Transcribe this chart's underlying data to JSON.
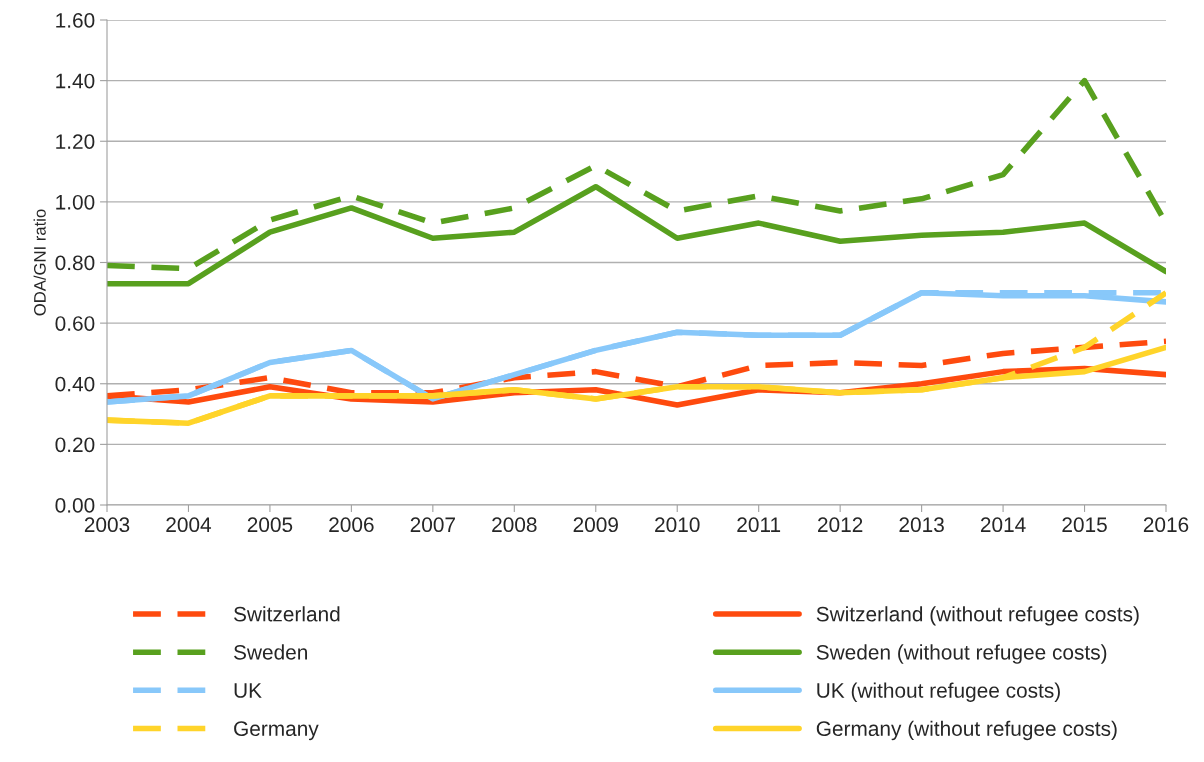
{
  "chart_data": {
    "type": "line",
    "ylabel": "ODA/GNI ratio",
    "x": [
      2003,
      2004,
      2005,
      2006,
      2007,
      2008,
      2009,
      2010,
      2011,
      2012,
      2013,
      2014,
      2015,
      2016
    ],
    "xlim": [
      2003,
      2016
    ],
    "xticks": [
      2003,
      2004,
      2005,
      2006,
      2007,
      2008,
      2009,
      2010,
      2011,
      2012,
      2013,
      2014,
      2015,
      2016
    ],
    "ylim": [
      0,
      1.6
    ],
    "yticks": [
      {
        "value": 0,
        "label": "0.00"
      },
      {
        "value": 0.2,
        "label": "0.20"
      },
      {
        "value": 0.4,
        "label": "0.40"
      },
      {
        "value": 0.6,
        "label": "0.60"
      },
      {
        "value": 0.8,
        "label": "0.80"
      },
      {
        "value": 1.0,
        "label": "1.00"
      },
      {
        "value": 1.2,
        "label": "1.20"
      },
      {
        "value": 1.4,
        "label": "1.40"
      },
      {
        "value": 1.6,
        "label": "1.60"
      }
    ],
    "grid": "y",
    "legend": "bottom",
    "marker": "none",
    "series": [
      {
        "name": "Switzerland",
        "color": "#fe4a0e",
        "line_style": "dashed",
        "values": [
          0.36,
          0.38,
          0.42,
          0.37,
          0.37,
          0.42,
          0.44,
          0.39,
          0.46,
          0.47,
          0.46,
          0.5,
          0.52,
          0.54
        ]
      },
      {
        "name": "Switzerland (without refugee costs)",
        "color": "#fe4a0e",
        "line_style": "solid",
        "values": [
          0.36,
          0.34,
          0.39,
          0.35,
          0.34,
          0.37,
          0.38,
          0.33,
          0.38,
          0.37,
          0.4,
          0.44,
          0.45,
          0.43
        ]
      },
      {
        "name": "Sweden",
        "color": "#58a01e",
        "line_style": "dashed",
        "values": [
          0.79,
          0.78,
          0.94,
          1.02,
          0.93,
          0.98,
          1.12,
          0.97,
          1.02,
          0.97,
          1.01,
          1.09,
          1.4,
          0.93
        ]
      },
      {
        "name": "Sweden (without refugee costs)",
        "color": "#58a01e",
        "line_style": "solid",
        "values": [
          0.73,
          0.73,
          0.9,
          0.98,
          0.88,
          0.9,
          1.05,
          0.88,
          0.93,
          0.87,
          0.89,
          0.9,
          0.93,
          0.77
        ]
      },
      {
        "name": "UK",
        "color": "#88c8fa",
        "line_style": "dashed",
        "values": [
          0.34,
          0.36,
          0.47,
          0.51,
          0.35,
          0.43,
          0.51,
          0.57,
          0.56,
          0.56,
          0.7,
          0.7,
          0.7,
          0.7
        ]
      },
      {
        "name": "UK (without refugee costs)",
        "color": "#88c8fa",
        "line_style": "solid",
        "values": [
          0.34,
          0.36,
          0.47,
          0.51,
          0.35,
          0.43,
          0.51,
          0.57,
          0.56,
          0.56,
          0.7,
          0.69,
          0.69,
          0.67
        ]
      },
      {
        "name": "Germany",
        "color": "#ffd42a",
        "line_style": "dashed",
        "values": [
          0.28,
          0.27,
          0.36,
          0.36,
          0.36,
          0.38,
          0.35,
          0.39,
          0.39,
          0.37,
          0.38,
          0.42,
          0.52,
          0.7
        ]
      },
      {
        "name": "Germany (without refugee costs)",
        "color": "#ffd42a",
        "line_style": "solid",
        "values": [
          0.28,
          0.27,
          0.36,
          0.36,
          0.36,
          0.38,
          0.35,
          0.39,
          0.39,
          0.37,
          0.38,
          0.42,
          0.44,
          0.52
        ]
      }
    ]
  }
}
